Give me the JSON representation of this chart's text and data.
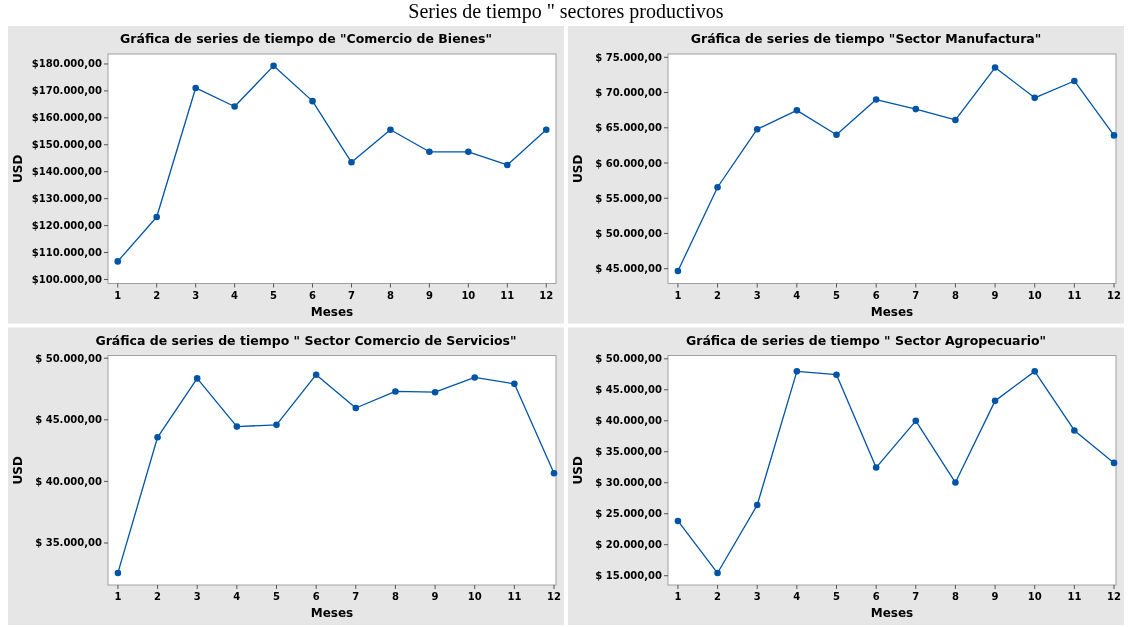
{
  "chart_data": [
    {
      "type": "line",
      "title": "Gráfica de series de tiempo de \"Comercio de Bienes\"",
      "annotations": [
        "Series de tiempo \" sectores productivos"
      ],
      "xlabel": "Meses",
      "ylabel": "USD",
      "marker": "circle",
      "grid": false,
      "x": [
        1,
        2,
        3,
        4,
        5,
        6,
        7,
        8,
        9,
        10,
        11,
        12
      ],
      "xlim": [
        0.75,
        12.25
      ],
      "xticks": [
        1,
        2,
        3,
        4,
        5,
        6,
        7,
        8,
        9,
        10,
        11,
        12
      ],
      "ylim": [
        98500,
        183700
      ],
      "yticks": [
        {
          "value": 100000,
          "label": "$100.000,00"
        },
        {
          "value": 110000,
          "label": "$110.000,00"
        },
        {
          "value": 120000,
          "label": "$120.000,00"
        },
        {
          "value": 130000,
          "label": "$130.000,00"
        },
        {
          "value": 140000,
          "label": "$140.000,00"
        },
        {
          "value": 150000,
          "label": "$150.000,00"
        },
        {
          "value": 160000,
          "label": "$160.000,00"
        },
        {
          "value": 170000,
          "label": "$170.000,00"
        },
        {
          "value": 180000,
          "label": "$180.000,00"
        }
      ],
      "series": [
        {
          "color": "#0054a6",
          "values": [
            106700,
            123200,
            171100,
            164200,
            179300,
            166200,
            143500,
            155600,
            147400,
            147400,
            142500,
            155600
          ]
        }
      ]
    },
    {
      "type": "line",
      "title": "Gráfica de series de tiempo \"Sector Manufactura\"",
      "xlabel": "Meses",
      "ylabel": "USD",
      "marker": "circle",
      "grid": false,
      "x": [
        1,
        2,
        3,
        4,
        5,
        6,
        7,
        8,
        9,
        10,
        11,
        12
      ],
      "xlim": [
        0.75,
        12.05
      ],
      "xticks": [
        1,
        2,
        3,
        4,
        5,
        6,
        7,
        8,
        9,
        10,
        11,
        12
      ],
      "ylim": [
        42900,
        75470
      ],
      "yticks": [
        {
          "value": 45000,
          "label": "$ 45.000,00"
        },
        {
          "value": 50000,
          "label": "$ 50.000,00"
        },
        {
          "value": 55000,
          "label": "$ 55.000,00"
        },
        {
          "value": 60000,
          "label": "$ 60.000,00"
        },
        {
          "value": 65000,
          "label": "$ 65.000,00"
        },
        {
          "value": 70000,
          "label": "$ 70.000,00"
        },
        {
          "value": 75000,
          "label": "$ 75.000,00"
        }
      ],
      "series": [
        {
          "color": "#0054a6",
          "values": [
            44670,
            56560,
            64800,
            67470,
            64010,
            69010,
            67650,
            66110,
            73550,
            69250,
            71640,
            63920
          ]
        }
      ]
    },
    {
      "type": "line",
      "title": "Gráfica de series de tiempo \" Sector Comercio de Servicios\"",
      "xlabel": "Meses",
      "ylabel": "USD",
      "marker": "circle",
      "grid": false,
      "x": [
        1,
        2,
        3,
        4,
        5,
        6,
        7,
        8,
        9,
        10,
        11,
        12
      ],
      "xlim": [
        0.75,
        12.05
      ],
      "xticks": [
        1,
        2,
        3,
        4,
        5,
        6,
        7,
        8,
        9,
        10,
        11,
        12
      ],
      "ylim": [
        31590,
        50220
      ],
      "yticks": [
        {
          "value": 35000,
          "label": "$ 35.000,00"
        },
        {
          "value": 40000,
          "label": "$ 40.000,00"
        },
        {
          "value": 45000,
          "label": "$ 45.000,00"
        },
        {
          "value": 50000,
          "label": "$ 50.000,00"
        }
      ],
      "series": [
        {
          "color": "#0054a6",
          "values": [
            32570,
            43580,
            48360,
            44450,
            44590,
            48660,
            45960,
            47300,
            47240,
            48440,
            47920,
            40660
          ]
        }
      ]
    },
    {
      "type": "line",
      "title": "Gráfica de series de tiempo \" Sector Agropecuario\"",
      "xlabel": "Meses",
      "ylabel": "USD",
      "marker": "circle",
      "grid": false,
      "x": [
        1,
        2,
        3,
        4,
        5,
        6,
        7,
        8,
        9,
        10,
        11,
        12
      ],
      "xlim": [
        0.75,
        12.05
      ],
      "xticks": [
        1,
        2,
        3,
        4,
        5,
        6,
        7,
        8,
        9,
        10,
        11,
        12
      ],
      "ylim": [
        13500,
        50530
      ],
      "yticks": [
        {
          "value": 15000,
          "label": "$ 15.000,00"
        },
        {
          "value": 20000,
          "label": "$ 20.000,00"
        },
        {
          "value": 25000,
          "label": "$ 25.000,00"
        },
        {
          "value": 30000,
          "label": "$ 30.000,00"
        },
        {
          "value": 35000,
          "label": "$ 35.000,00"
        },
        {
          "value": 40000,
          "label": "$ 40.000,00"
        },
        {
          "value": 45000,
          "label": "$ 45.000,00"
        },
        {
          "value": 50000,
          "label": "$ 50.000,00"
        }
      ],
      "series": [
        {
          "color": "#0054a6",
          "values": [
            23830,
            15430,
            26400,
            47970,
            47430,
            32450,
            39990,
            30030,
            43210,
            47970,
            38440,
            33200
          ]
        }
      ]
    }
  ]
}
